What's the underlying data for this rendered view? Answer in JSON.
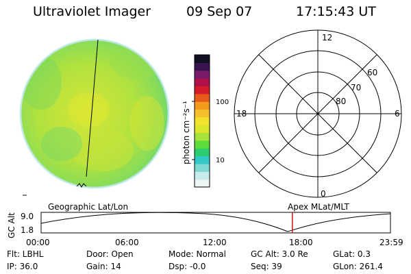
{
  "header": {
    "instrument": "Ultraviolet Imager",
    "date": "09 Sep 07",
    "time": "17:15:43 UT"
  },
  "colorbar": {
    "label": "photon cm⁻²s⁻¹",
    "ticks": [
      "100",
      "10"
    ],
    "colors": [
      "#eef5f5",
      "#c8ecea",
      "#7fd8d2",
      "#33c8c8",
      "#2ecc71",
      "#5edc3a",
      "#a6e23a",
      "#d9e62c",
      "#f2e32a",
      "#f5c02b",
      "#f39a1c",
      "#e85a1a",
      "#d51a2a",
      "#b0104a",
      "#7a1a6a",
      "#3a1450",
      "#101020"
    ]
  },
  "polar_plot": {
    "hour_labels": {
      "top": "12",
      "left": "18",
      "right": "6",
      "bottom": "0"
    },
    "lat_labels": [
      "60",
      "70",
      "80"
    ]
  },
  "altitude_strip": {
    "axis_label": "GC Alt",
    "y_ticks": [
      "9.0",
      "1.8"
    ],
    "left_title": "Geographic Lat/Lon",
    "right_title": "Apex MLat/MLT",
    "time_ticks": [
      "00:00",
      "06:00",
      "12:00",
      "18:00",
      "23:59"
    ],
    "cursor_time_fraction": 0.7193,
    "cursor_color": "#d01010"
  },
  "status": {
    "row1": {
      "flt": "Flt: LBHL",
      "door": "Door: Open",
      "mode": "Mode: Normal",
      "gc_alt": "GC Alt: 3.0 Re",
      "glat": "GLat:   0.3"
    },
    "row2": {
      "ip": "IP: 36.0",
      "gain": "Gain: 14",
      "dsp": "Dsp:   -0.0",
      "seq": "Seq: 39",
      "glon": "GLon: 261.4"
    }
  }
}
